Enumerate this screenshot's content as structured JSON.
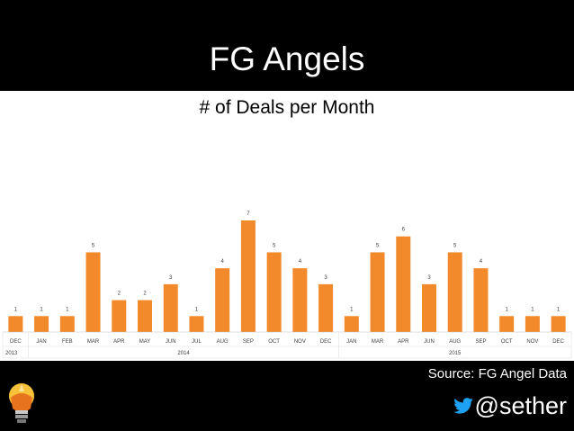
{
  "slide": {
    "title": "FG Angels",
    "source": "Source: FG Angel Data",
    "handle": "@sether"
  },
  "colors": {
    "background": "#000000",
    "panel": "#ffffff",
    "bar": "#f28a2c",
    "twitter": "#1da1f2",
    "logo_yellow": "#f7c23a",
    "logo_orange": "#e8731e"
  },
  "icons": [
    "twitter-bird-icon",
    "lightbulb-logo"
  ],
  "chart_data": {
    "type": "bar",
    "title": "# of Deals per Month",
    "xlabel": "",
    "ylabel": "",
    "ylim": [
      0,
      7
    ],
    "grid": false,
    "legend": "none",
    "data_labels": true,
    "categories": [
      "DEC",
      "JAN",
      "FEB",
      "MAR",
      "APR",
      "MAY",
      "JUN",
      "JUL",
      "AUG",
      "SEP",
      "OCT",
      "NOV",
      "DEC",
      "JAN",
      "MAR",
      "APR",
      "JUN",
      "AUG",
      "SEP",
      "OCT",
      "NOV",
      "DEC"
    ],
    "values": [
      1,
      1,
      1,
      5,
      2,
      2,
      3,
      1,
      4,
      7,
      5,
      4,
      3,
      1,
      5,
      6,
      3,
      5,
      4,
      1,
      1,
      1
    ],
    "year_groups": [
      {
        "label": "2013",
        "start": 0,
        "end": 0
      },
      {
        "label": "2014",
        "start": 1,
        "end": 12
      },
      {
        "label": "2015",
        "start": 13,
        "end": 21
      }
    ]
  }
}
